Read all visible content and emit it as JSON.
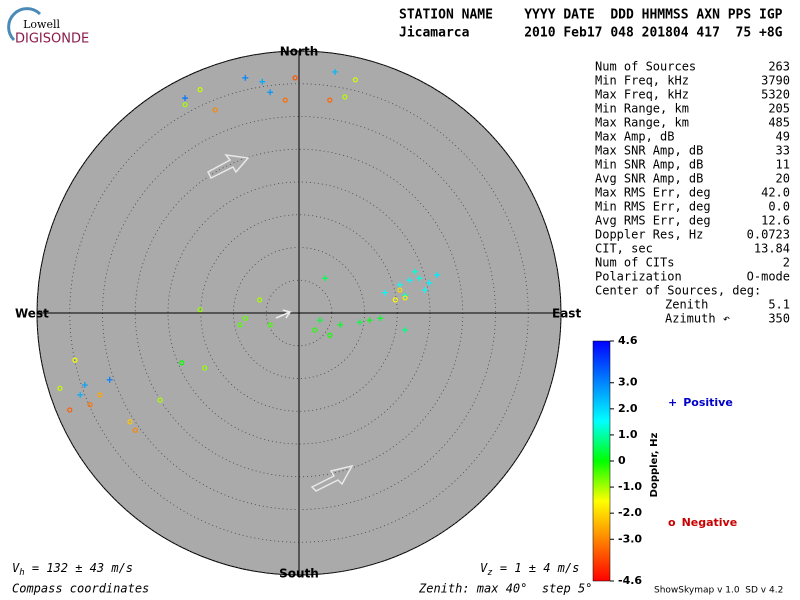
{
  "logo": {
    "top": "Lowell",
    "bottom": "DIGISONDE"
  },
  "header": {
    "line1": "STATION NAME    YYYY DATE  DDD HHMMSS AXN PPS IGP",
    "line2": "Jicamarca       2010 Feb17 048 201804 417  75 +8G"
  },
  "stats": [
    [
      "Num of Sources",
      263
    ],
    [
      "Min Freq, kHz",
      3790
    ],
    [
      "Max Freq, kHz",
      5320
    ],
    [
      "Min Range, km",
      205
    ],
    [
      "Max Range, km",
      485
    ],
    [
      "Max Amp, dB",
      49
    ],
    [
      "Max SNR Amp, dB",
      33
    ],
    [
      "Min SNR Amp, dB",
      11
    ],
    [
      "Avg SNR Amp, dB",
      20
    ],
    [
      "Max RMS Err, deg",
      "42.0"
    ],
    [
      "Min RMS Err, deg",
      "0.0"
    ],
    [
      "Avg RMS Err, deg",
      12.6
    ],
    [
      "Doppler Res, Hz",
      0.0723
    ],
    [
      "CIT, sec",
      13.84
    ],
    [
      "Num of CITs",
      2
    ],
    [
      "Polarization",
      "O-mode"
    ]
  ],
  "center": {
    "title": "Center of Sources, deg:",
    "rows": [
      [
        "Zenith",
        5.1
      ],
      [
        "Azimuth ↶",
        350
      ]
    ]
  },
  "footer": {
    "vh": {
      "symbol": "V",
      "sub": "h",
      "text": " = 132 ± 43 m/s"
    },
    "vz": {
      "symbol": "V",
      "sub": "z",
      "text": " = 1 ± 4 m/s"
    },
    "left": "Compass coordinates",
    "zenith": "Zenith: max 40°  step 5°",
    "version": "ShowSkymap v 1.0  SD v 4.2"
  },
  "chart_data": {
    "type": "skymap",
    "directions": {
      "north": "North",
      "south": "South",
      "east": "East",
      "west": "West"
    },
    "rlim": [
      0,
      40
    ],
    "rticks": [
      5,
      10,
      15,
      20,
      25,
      30,
      35,
      40
    ],
    "colorbar": {
      "label": "Doppler, Hz",
      "clim": [
        -4.6,
        4.6
      ],
      "colormap": [
        "#ff0000",
        "#ff8000",
        "#ffff00",
        "#00ff00",
        "#00ffff",
        "#0080ff",
        "#0000ff"
      ],
      "ticks": [
        4.6,
        {
          "value": 3.0,
          "label": "3.0"
        },
        {
          "value": 2.0,
          "label": "2.0"
        },
        {
          "value": 1.0,
          "label": "1.0"
        },
        0,
        {
          "value": -1.0,
          "label": "-1.0"
        },
        {
          "value": -2.0,
          "label": "-2.0"
        },
        {
          "value": -3.0,
          "label": "-3.0"
        },
        -4.6
      ]
    },
    "series": [
      {
        "name": "Positive",
        "marker": "+",
        "color": "#0000c8",
        "x": [
          15.4,
          16.9,
          18.4,
          19.9,
          21.1,
          16.2,
          19.2,
          17.7,
          13.1,
          -8.2,
          -5.6,
          -4.4,
          -17.4,
          5.5,
          3.2,
          6.3,
          9.3,
          10.8,
          12.4,
          4.0,
          16.2,
          -32.7,
          -28.9,
          -33.4
        ],
        "y": [
          4.3,
          5.0,
          5.3,
          4.6,
          5.8,
          2.7,
          3.5,
          6.3,
          3.1,
          35.9,
          35.3,
          33.7,
          32.8,
          36.8,
          -1.1,
          -1.8,
          -1.4,
          -1.1,
          -0.8,
          5.3,
          -2.6,
          -11.0,
          -10.2,
          -12.5
        ],
        "doppler": [
          1.5,
          1.6,
          1.4,
          1.7,
          1.8,
          1.2,
          1.5,
          1.3,
          1.6,
          3.0,
          2.6,
          2.8,
          3.2,
          2.4,
          0.3,
          0.2,
          0.4,
          0.1,
          0.3,
          0.5,
          0.8,
          2.7,
          3.1,
          2.5
        ]
      },
      {
        "name": "Negative",
        "marker": "o",
        "color": "#c80000",
        "x": [
          -2.1,
          -0.6,
          -12.8,
          4.7,
          -15.1,
          -17.4,
          7.0,
          8.6,
          -15.1,
          -8.2,
          -6.0,
          -9.0,
          -4.4,
          2.4,
          4.7,
          15.4,
          16.2,
          14.7,
          -35.0,
          -31.9,
          -25.0,
          -25.8,
          -30.4,
          -34.2,
          -36.5,
          -21.2,
          -14.4,
          -17.9
        ],
        "y": [
          32.5,
          35.9,
          31.0,
          32.5,
          34.1,
          31.8,
          33.0,
          35.6,
          0.5,
          -0.8,
          2.0,
          -1.8,
          -1.8,
          -2.6,
          -3.4,
          3.5,
          2.3,
          2.0,
          -14.8,
          -14.0,
          -17.9,
          -16.6,
          -12.5,
          -7.2,
          -11.5,
          -13.3,
          -8.4,
          -7.6
        ],
        "doppler": [
          -3.3,
          -3.6,
          -3.0,
          -3.4,
          -1.2,
          -1.0,
          -1.1,
          -1.3,
          -0.9,
          -0.6,
          -1.0,
          -0.5,
          -0.4,
          -0.2,
          -0.1,
          -2.0,
          -1.8,
          -1.6,
          -3.5,
          -3.2,
          -3.0,
          -2.2,
          -2.6,
          -1.5,
          -1.2,
          -1.0,
          -0.9,
          0.0
        ]
      }
    ]
  }
}
